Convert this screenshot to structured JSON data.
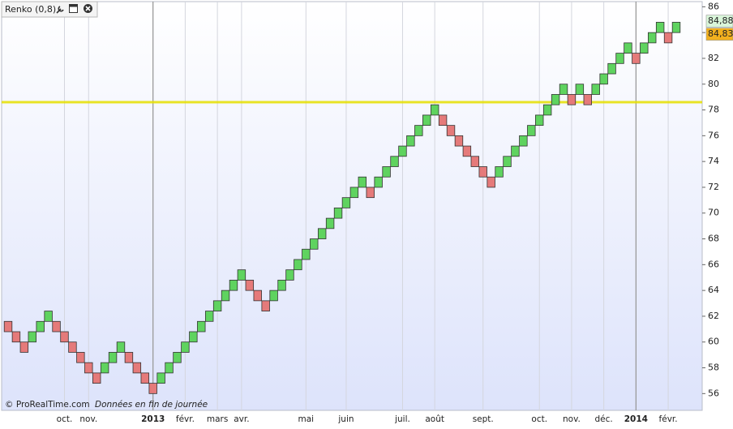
{
  "chart_data": {
    "type": "renko",
    "title": "Renko (0,8)",
    "footer_source": "© ProRealTime.com",
    "footer_note": "Données en fin de journée",
    "open": [
      61.6,
      60.8,
      60.0,
      60.0,
      60.8,
      61.6,
      61.6,
      60.8,
      60.0,
      59.2,
      58.4,
      57.6,
      57.6,
      58.4,
      59.2,
      59.2,
      58.4,
      57.6,
      56.8,
      56.8,
      57.6,
      58.4,
      59.2,
      60.0,
      60.8,
      61.6,
      62.4,
      63.2,
      64.0,
      64.8,
      64.8,
      64.0,
      63.2,
      63.2,
      64.0,
      64.8,
      65.6,
      66.4,
      67.2,
      68.0,
      68.8,
      69.6,
      70.4,
      71.2,
      72.0,
      72.0,
      72.0,
      72.8,
      73.6,
      74.4,
      75.2,
      76.0,
      76.8,
      77.6,
      77.6,
      76.8,
      76.0,
      75.2,
      74.4,
      73.6,
      72.8,
      72.8,
      73.6,
      74.4,
      75.2,
      76.0,
      76.8,
      77.6,
      78.4,
      79.2,
      79.2,
      79.2,
      79.2,
      79.2,
      80.0,
      80.8,
      81.6,
      82.4,
      82.4,
      82.4,
      83.2,
      84.0,
      84.0,
      84.0
    ],
    "close": [
      60.8,
      60.0,
      59.2,
      60.8,
      61.6,
      62.4,
      60.8,
      60.0,
      59.2,
      58.4,
      57.6,
      56.8,
      58.4,
      59.2,
      60.0,
      58.4,
      57.6,
      56.8,
      56.0,
      57.6,
      58.4,
      59.2,
      60.0,
      60.8,
      61.6,
      62.4,
      63.2,
      64.0,
      64.8,
      65.6,
      64.0,
      63.2,
      62.4,
      64.0,
      64.8,
      65.6,
      66.4,
      67.2,
      68.0,
      68.8,
      69.6,
      70.4,
      71.2,
      72.0,
      72.8,
      71.2,
      72.8,
      73.6,
      74.4,
      75.2,
      76.0,
      76.8,
      77.6,
      78.4,
      76.8,
      76.0,
      75.2,
      74.4,
      73.6,
      72.8,
      72.0,
      73.6,
      74.4,
      75.2,
      76.0,
      76.8,
      77.6,
      78.4,
      79.2,
      80.0,
      78.4,
      80.0,
      78.4,
      80.0,
      80.8,
      81.6,
      82.4,
      83.2,
      81.6,
      83.2,
      84.0,
      84.8,
      83.2,
      84.8
    ],
    "x_labels": [
      null,
      null,
      null,
      null,
      null,
      null,
      null,
      "oct.",
      null,
      null,
      "nov.",
      null,
      null,
      null,
      null,
      null,
      null,
      null,
      "2013",
      null,
      null,
      null,
      "févr.",
      null,
      null,
      null,
      "mars",
      null,
      null,
      "avr.",
      null,
      null,
      null,
      null,
      null,
      null,
      null,
      "mai",
      null,
      null,
      null,
      null,
      "juin",
      null,
      null,
      null,
      null,
      null,
      null,
      "juil.",
      null,
      null,
      null,
      "août",
      null,
      null,
      null,
      null,
      null,
      "sept.",
      null,
      null,
      null,
      null,
      null,
      null,
      "oct.",
      null,
      null,
      null,
      "nov.",
      null,
      null,
      null,
      "déc.",
      null,
      null,
      null,
      "2014",
      null,
      null,
      null,
      "févr.",
      null
    ],
    "up_color": "#5fd35f",
    "down_color": "#e57a7a",
    "ylim": [
      54.7,
      86.4
    ],
    "yticks": [
      56,
      58,
      60,
      62,
      64,
      66,
      68,
      70,
      72,
      74,
      76,
      78,
      80,
      82,
      84,
      86
    ],
    "hlines": [
      {
        "value": 78.6,
        "color": "#e6e000"
      }
    ],
    "price_labels": [
      {
        "value": 84.88,
        "label": "84,88",
        "color": "#d9f5d9",
        "text_color": "#3aa03a"
      },
      {
        "value": 84.83,
        "label": "84,83",
        "color": "#f2b01e",
        "text_color": "#222222"
      }
    ],
    "grid": true
  }
}
